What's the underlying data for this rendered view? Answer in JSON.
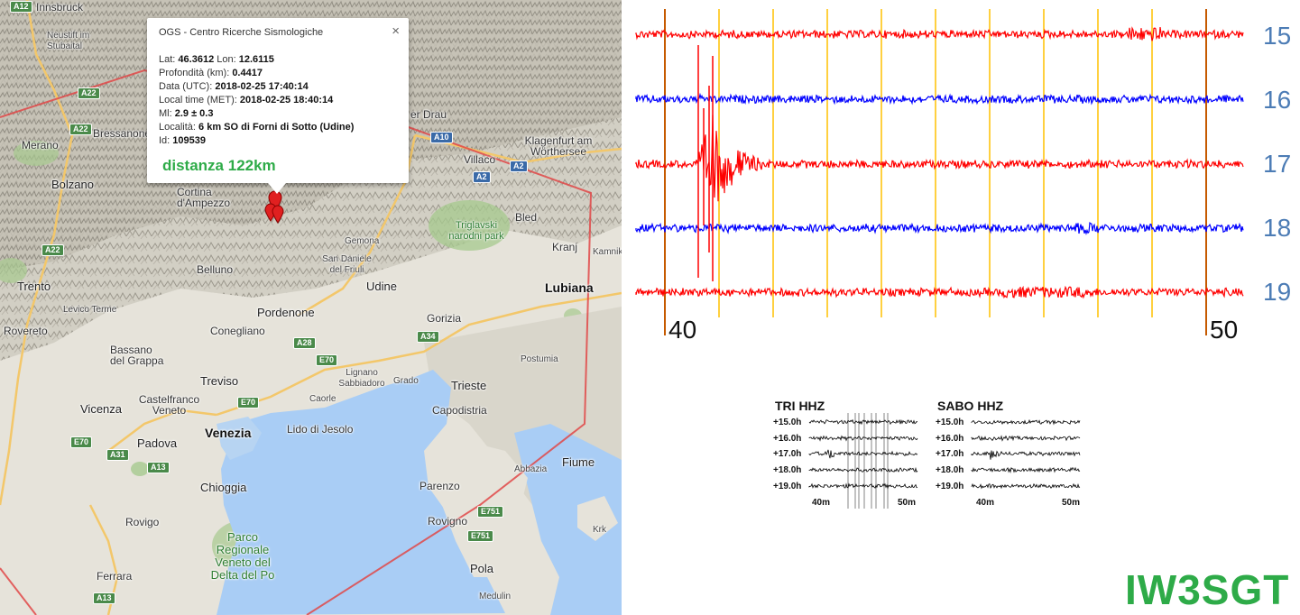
{
  "map": {
    "places": [
      {
        "id": "innsbruck",
        "text": "Innsbruck"
      },
      {
        "id": "neustift",
        "text": "Neustift im Stubaital"
      },
      {
        "id": "merano",
        "text": "Merano"
      },
      {
        "id": "bressanone",
        "text": "Bressanone"
      },
      {
        "id": "bolzano",
        "text": "Bolzano"
      },
      {
        "id": "cortina",
        "text": "Cortina d'Ampezzo"
      },
      {
        "id": "trento",
        "text": "Trento"
      },
      {
        "id": "levico",
        "text": "Levico Terme"
      },
      {
        "id": "rovereto",
        "text": "Rovereto"
      },
      {
        "id": "bassano",
        "text": "Bassano del Grappa"
      },
      {
        "id": "belluno",
        "text": "Belluno"
      },
      {
        "id": "conegliano",
        "text": "Conegliano"
      },
      {
        "id": "pordenone",
        "text": "Pordenone"
      },
      {
        "id": "udine",
        "text": "Udine"
      },
      {
        "id": "gemona",
        "text": "Gemona"
      },
      {
        "id": "sandaniele",
        "text": "San Daniele del Friuli"
      },
      {
        "id": "treviso",
        "text": "Treviso"
      },
      {
        "id": "castelfranco",
        "text": "Castelfranco Veneto"
      },
      {
        "id": "vicenza",
        "text": "Vicenza"
      },
      {
        "id": "venezia",
        "text": "Venezia"
      },
      {
        "id": "padova",
        "text": "Padova"
      },
      {
        "id": "chioggia",
        "text": "Chioggia"
      },
      {
        "id": "rovigo",
        "text": "Rovigo"
      },
      {
        "id": "ferrara",
        "text": "Ferrara"
      },
      {
        "id": "lido",
        "text": "Lido di Jesolo"
      },
      {
        "id": "lignano",
        "text": "Lignano Sabbiadoro"
      },
      {
        "id": "grado",
        "text": "Grado"
      },
      {
        "id": "caorle",
        "text": "Caorle"
      },
      {
        "id": "trieste",
        "text": "Trieste"
      },
      {
        "id": "capodistria",
        "text": "Capodistria"
      },
      {
        "id": "gorizia",
        "text": "Gorizia"
      },
      {
        "id": "lubiana",
        "text": "Lubiana"
      },
      {
        "id": "kranj",
        "text": "Kranj"
      },
      {
        "id": "bled",
        "text": "Bled"
      },
      {
        "id": "postumia",
        "text": "Postumia"
      },
      {
        "id": "villaco",
        "text": "Villaco"
      },
      {
        "id": "klagenfurt",
        "text": "Klagenfurt am Wörthersee"
      },
      {
        "id": "drau",
        "text": "er Drau"
      },
      {
        "id": "kamnik",
        "text": "Kamnik"
      },
      {
        "id": "parenzo",
        "text": "Parenzo"
      },
      {
        "id": "rovigno",
        "text": "Rovigno"
      },
      {
        "id": "pola",
        "text": "Pola"
      },
      {
        "id": "medulin",
        "text": "Medulin"
      },
      {
        "id": "fiume",
        "text": "Fiume"
      },
      {
        "id": "abbazia",
        "text": "Abbazia"
      },
      {
        "id": "krk",
        "text": "Krk"
      },
      {
        "id": "triglav",
        "text": "Triglavski narodni park"
      },
      {
        "id": "parco",
        "text": "Parco Regionale Veneto del Delta del Po"
      }
    ],
    "roads": [
      "A12",
      "A22",
      "A22",
      "A10",
      "A2",
      "A2",
      "A22",
      "A28",
      "E70",
      "E70",
      "A34",
      "E70",
      "A31",
      "A13",
      "A13",
      "E751",
      "E751"
    ]
  },
  "popup": {
    "title": "OGS - Centro Ricerche Sismologiche",
    "close": "×",
    "lat_label": "Lat:",
    "lat_value": "46.3612",
    "lon_label": "Lon:",
    "lon_value": "12.6115",
    "depth_label": "Profondità (km):",
    "depth_value": "0.4417",
    "utc_label": "Data (UTC):",
    "utc_value": "2018-02-25 17:40:14",
    "local_label": "Local time (MET):",
    "local_value": "2018-02-25 18:40:14",
    "ml_label": "Ml:",
    "ml_value": "2.9 ± 0.3",
    "loc_label": "Località:",
    "loc_value": "6 km SO di Forni di Sotto (Udine)",
    "id_label": "Id:",
    "id_value": "109539",
    "distance": "distanza 122km"
  },
  "seismogram": {
    "hours": [
      "15",
      "16",
      "17",
      "18",
      "19"
    ],
    "trace_colors": [
      "#ff0000",
      "#0000ff",
      "#ff0000",
      "#0000ff",
      "#ff0000"
    ],
    "minute_start": "40",
    "minute_end": "50",
    "quake_trace": "17"
  },
  "thumbnails": [
    {
      "title": "TRI HHZ",
      "rows": [
        "+15.0h",
        "+16.0h",
        "+17.0h",
        "+18.0h",
        "+19.0h"
      ],
      "min_start": "40m",
      "min_end": "50m"
    },
    {
      "title": "SABO HHZ",
      "rows": [
        "+15.0h",
        "+16.0h",
        "+17.0h",
        "+18.0h",
        "+19.0h"
      ],
      "min_start": "40m",
      "min_end": "50m"
    }
  ],
  "callsign": "IW3SGT",
  "colors": {
    "callsign": "#2eab48",
    "hour_labels": "#4c7cb5",
    "grid_orange": "#c65a00",
    "grid_yellow": "#ffc000"
  }
}
